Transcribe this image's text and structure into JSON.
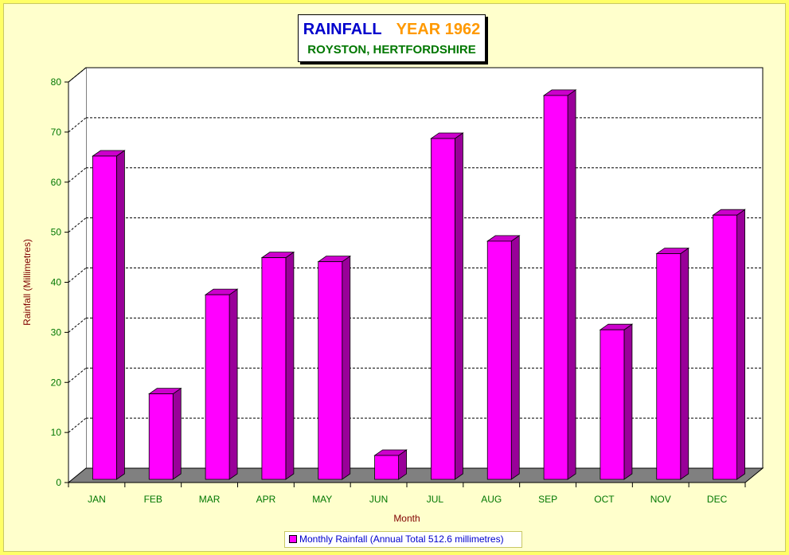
{
  "title": {
    "main": "RAINFALL",
    "year": "YEAR 1962",
    "subtitle": "ROYSTON, HERTFORDSHIRE"
  },
  "colors": {
    "bar_front": "#ff00ff",
    "bar_side": "#990099",
    "bar_top": "#cc00cc",
    "floor": "#808080",
    "axis_text": "#007700",
    "axis_label": "#800000",
    "background": "#ffffcc",
    "border": "#ffff66"
  },
  "legend": {
    "label": "Monthly Rainfall (Annual Total 512.6 millimetres)"
  },
  "chart_data": {
    "type": "bar",
    "title": "RAINFALL YEAR 1962",
    "subtitle": "ROYSTON, HERTFORDSHIRE",
    "xlabel": "Month",
    "ylabel": "Rainfall (Millimetres)",
    "categories": [
      "JAN",
      "FEB",
      "MAR",
      "APR",
      "MAY",
      "JUN",
      "JUL",
      "AUG",
      "SEP",
      "OCT",
      "NOV",
      "DEC"
    ],
    "series": [
      {
        "name": "Monthly Rainfall (Annual Total 512.6 millimetres)",
        "values": [
          63.0,
          15.5,
          35.3,
          42.7,
          41.9,
          3.2,
          66.5,
          46.0,
          75.1,
          28.3,
          43.5,
          51.2
        ]
      }
    ],
    "ylim": [
      0,
      80
    ],
    "yticks": [
      0,
      10,
      20,
      30,
      40,
      50,
      60,
      70,
      80
    ],
    "grid": true,
    "legend_position": "bottom-center"
  }
}
